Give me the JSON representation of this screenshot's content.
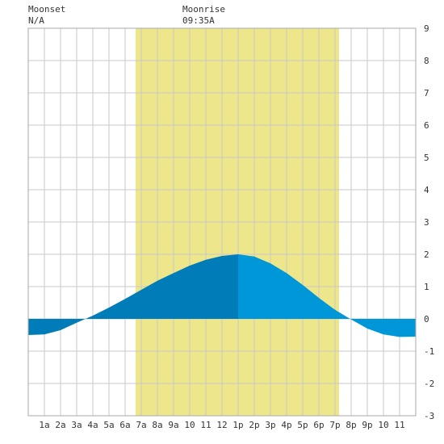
{
  "chart_data": {
    "type": "tide",
    "moonset_label": "Moonset",
    "moonset_time": "N/A",
    "moonrise_label": "Moonrise",
    "moonrise_time": "09:35A",
    "daylight": [
      6.65,
      19.25
    ],
    "daylight_color": "#eee68a",
    "x": [
      0,
      1,
      2,
      3,
      4,
      5,
      6,
      7,
      8,
      9,
      10,
      11,
      12,
      13,
      14,
      15,
      16,
      17,
      18,
      19,
      20,
      21,
      22,
      23,
      24
    ],
    "values": [
      -0.5,
      -0.48,
      -0.35,
      -0.12,
      0.1,
      0.35,
      0.62,
      0.9,
      1.18,
      1.42,
      1.65,
      1.83,
      1.95,
      2.0,
      1.93,
      1.72,
      1.42,
      1.05,
      0.65,
      0.28,
      -0.02,
      -0.3,
      -0.48,
      -0.56,
      -0.55
    ],
    "peak_index": 13,
    "rising_color": "#007db8",
    "falling_color": "#0097d9",
    "xlim": [
      0,
      24
    ],
    "xticks": [
      {
        "value": 1,
        "label": "1a"
      },
      {
        "value": 2,
        "label": "2a"
      },
      {
        "value": 3,
        "label": "3a"
      },
      {
        "value": 4,
        "label": "4a"
      },
      {
        "value": 5,
        "label": "5a"
      },
      {
        "value": 6,
        "label": "6a"
      },
      {
        "value": 7,
        "label": "7a"
      },
      {
        "value": 8,
        "label": "8a"
      },
      {
        "value": 9,
        "label": "9a"
      },
      10,
      11,
      12,
      {
        "value": 13,
        "label": "1p"
      },
      {
        "value": 14,
        "label": "2p"
      },
      {
        "value": 15,
        "label": "3p"
      },
      {
        "value": 16,
        "label": "4p"
      },
      {
        "value": 17,
        "label": "5p"
      },
      {
        "value": 18,
        "label": "6p"
      },
      {
        "value": 19,
        "label": "7p"
      },
      {
        "value": 20,
        "label": "8p"
      },
      {
        "value": 21,
        "label": "9p"
      },
      {
        "value": 22,
        "label": "10"
      },
      {
        "value": 23,
        "label": "11"
      }
    ],
    "ylim": [
      -3,
      9
    ],
    "yticks": [
      -3,
      -2,
      -1,
      0,
      1,
      2,
      3,
      4,
      5,
      6,
      7,
      8,
      9
    ],
    "grid": true
  }
}
